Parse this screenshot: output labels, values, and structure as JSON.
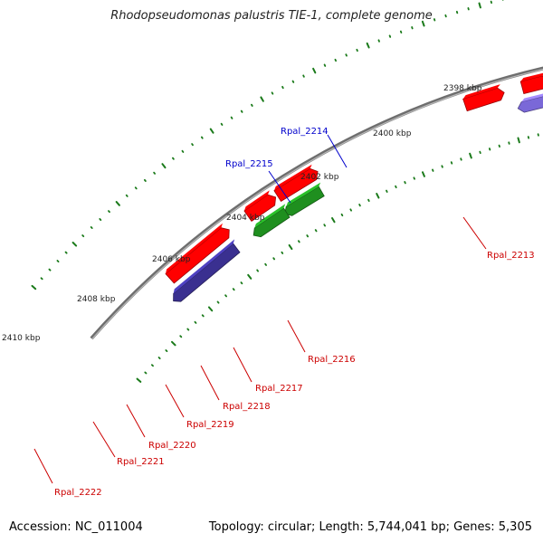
{
  "title": "Rhodopseudomonas palustris TIE-1, complete genome",
  "footer": {
    "accession": "Accession: NC_011004",
    "summary": "Topology: circular; Length: 5,744,041 bp; Genes: 5,305"
  },
  "colors": {
    "backbone": "#8a8a8a",
    "tick": "#1a7a1a",
    "label_red": "#cc0000",
    "label_blue": "#0000cc"
  },
  "kbp_labels": [
    "2398 kbp",
    "2400 kbp",
    "2402 kbp",
    "2404 kbp",
    "2406 kbp",
    "2408 kbp",
    "2410 kbp"
  ],
  "genes": [
    {
      "name": "Rpal_2213",
      "color": "#cc0000"
    },
    {
      "name": "Rpal_2214",
      "color": "#0000cc"
    },
    {
      "name": "Rpal_2215",
      "color": "#0000cc"
    },
    {
      "name": "Rpal_2216",
      "color": "#cc0000"
    },
    {
      "name": "Rpal_2217",
      "color": "#cc0000"
    },
    {
      "name": "Rpal_2218",
      "color": "#cc0000"
    },
    {
      "name": "Rpal_2219",
      "color": "#cc0000"
    },
    {
      "name": "Rpal_2220",
      "color": "#cc0000"
    },
    {
      "name": "Rpal_2221",
      "color": "#cc0000"
    },
    {
      "name": "Rpal_2222",
      "color": "#cc0000"
    }
  ],
  "feature_colors": {
    "red": "#ff0000",
    "blue": "#0000ee",
    "cyan": "#00e0e0",
    "steel": "#4f7fbf",
    "khaki": "#c8c078",
    "purple": "#7a68d8",
    "navy": "#3a3090",
    "green": "#1f8f1f",
    "gray": "#c0c0c0"
  }
}
